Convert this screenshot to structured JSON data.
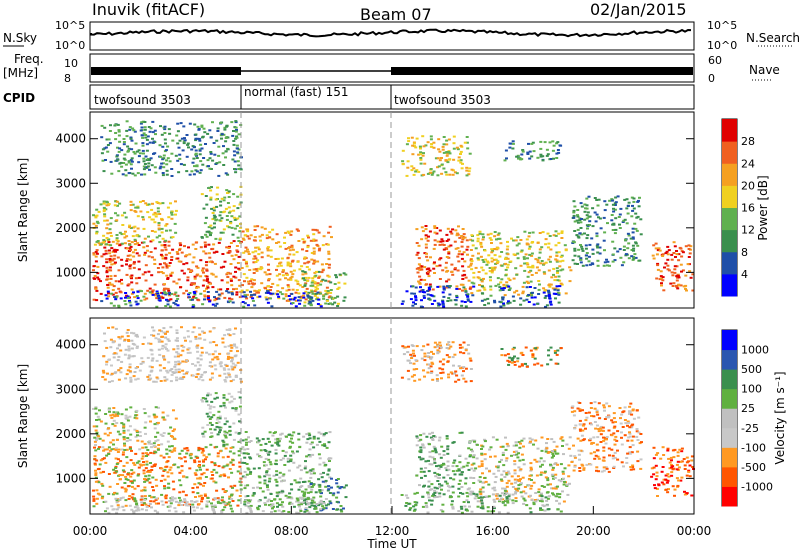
{
  "header": {
    "station": "Inuvik (fitACF)",
    "beam": "Beam 07",
    "date": "02/Jan/2015"
  },
  "top_panel": {
    "left_label": "N.Sky",
    "left_ticks": [
      "10^5",
      "10^0"
    ],
    "right_label": "N.Search",
    "right_ticks": [
      "10^5",
      "10^0"
    ]
  },
  "freq_panel": {
    "left_label_line1": "Freq.",
    "left_label_line2": "[MHz]",
    "left_ticks": [
      "10",
      "8"
    ],
    "right_label": "Nave",
    "right_ticks": [
      "60",
      "0"
    ]
  },
  "cpid_panel": {
    "label": "CPID",
    "segments": [
      "twofsound 3503",
      "normal (fast) 151",
      "twofsound 3503"
    ]
  },
  "colors": {
    "cb_power": [
      "#0000ff",
      "#1f4fa8",
      "#3a8f4e",
      "#60b050",
      "#f0d020",
      "#f5a020",
      "#f06020",
      "#e00000"
    ],
    "cb_velocity": [
      "#ff0000",
      "#ff5500",
      "#ff9922",
      "#c8c8c8",
      "#c0c0c0",
      "#60b040",
      "#3a8f4e",
      "#2a56b0",
      "#0000ff"
    ]
  },
  "chart_data": [
    {
      "type": "heatmap",
      "title": "",
      "quantity": "Power",
      "ylabel": "Slant Range [km]",
      "xlabel": "",
      "ylim": [
        200,
        4600
      ],
      "y_ticks": [
        "1000",
        "2000",
        "3000",
        "4000"
      ],
      "colorbar": {
        "label": "Power [dB]",
        "ticks": [
          "4",
          "8",
          "12",
          "16",
          "20",
          "24",
          "28"
        ]
      }
    },
    {
      "type": "heatmap",
      "title": "",
      "quantity": "Velocity",
      "ylabel": "Slant Range [km]",
      "xlabel": "Time UT",
      "x_ticks": [
        "00:00",
        "04:00",
        "08:00",
        "12:00",
        "16:00",
        "20:00",
        "00:00"
      ],
      "ylim": [
        200,
        4600
      ],
      "y_ticks": [
        "1000",
        "2000",
        "3000",
        "4000"
      ],
      "colorbar": {
        "label": "Velocity [m s⁻¹]",
        "ticks": [
          "-1000",
          "-500",
          "-100",
          "-25",
          "25",
          "100",
          "500",
          "1000"
        ]
      }
    }
  ]
}
